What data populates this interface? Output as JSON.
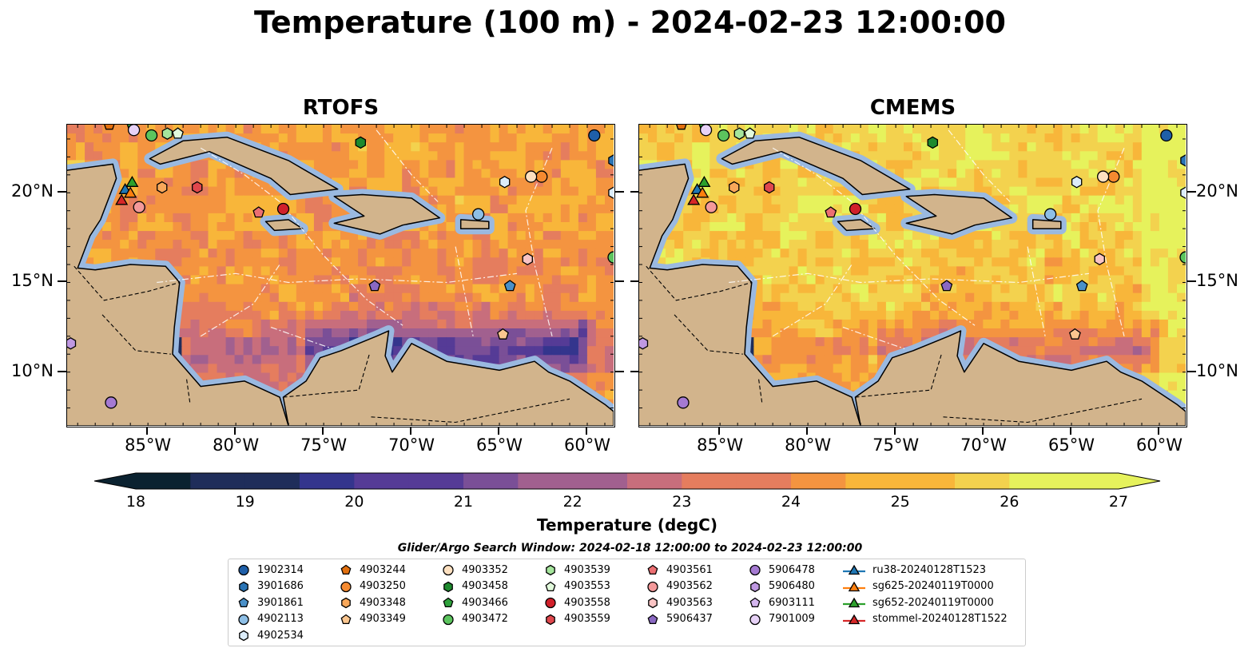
{
  "title": "Temperature (100 m) - 2024-02-23 12:00:00",
  "panels": [
    {
      "title": "RTOFS",
      "variant": "rtofs"
    },
    {
      "title": "CMEMS",
      "variant": "cmems"
    }
  ],
  "axes": {
    "lon_labels": [
      "85°W",
      "80°W",
      "75°W",
      "70°W",
      "65°W",
      "60°W"
    ],
    "lon_values": [
      -85,
      -80,
      -75,
      -70,
      -65,
      -60
    ],
    "lat_labels": [
      "20°N",
      "15°N",
      "10°N"
    ],
    "lat_values": [
      20,
      15,
      10
    ],
    "lon_range": [
      -89.6,
      -58.5
    ],
    "lat_range": [
      7.0,
      23.8
    ]
  },
  "colorbar": {
    "label": "Temperature (degC)",
    "ticks": [
      "18",
      "19",
      "20",
      "21",
      "22",
      "23",
      "24",
      "25",
      "26",
      "27"
    ],
    "vmin": 18,
    "vmax": 27,
    "step": 0.5,
    "extend": "both",
    "colormap": [
      "#0b2230",
      "#1f2d5a",
      "#34358d",
      "#553b96",
      "#7a4f97",
      "#a1608f",
      "#c86e7c",
      "#e57d5e",
      "#f49440",
      "#f8b63a",
      "#f3d24e",
      "#e6f25c"
    ]
  },
  "legend": {
    "title": "Glider/Argo Search Window: 2024-02-18 12:00:00 to 2024-02-23 12:00:00",
    "columns": [
      [
        {
          "label": "1902314",
          "marker": "circle",
          "color": "#1f5fa8"
        },
        {
          "label": "3901686",
          "marker": "hexagon",
          "color": "#2a74b5"
        },
        {
          "label": "3901861",
          "marker": "pentagon",
          "color": "#4a90c8"
        },
        {
          "label": "4902113",
          "marker": "circle",
          "color": "#8ebfe6"
        },
        {
          "label": "4902534",
          "marker": "hexagon",
          "color": "#dcedfa"
        }
      ],
      [
        {
          "label": "4903244",
          "marker": "pentagon",
          "color": "#e2700f"
        },
        {
          "label": "4903250",
          "marker": "circle",
          "color": "#f58a30"
        },
        {
          "label": "4903348",
          "marker": "hexagon",
          "color": "#f9a85a"
        },
        {
          "label": "4903349",
          "marker": "pentagon",
          "color": "#fbc68f"
        }
      ],
      [
        {
          "label": "4903352",
          "marker": "circle",
          "color": "#fde0c0"
        },
        {
          "label": "4903458",
          "marker": "hexagon",
          "color": "#1e8a2e"
        },
        {
          "label": "4903466",
          "marker": "pentagon",
          "color": "#2ea13b"
        },
        {
          "label": "4903472",
          "marker": "circle",
          "color": "#5cc45e"
        }
      ],
      [
        {
          "label": "4903539",
          "marker": "hexagon",
          "color": "#a5e59c"
        },
        {
          "label": "4903553",
          "marker": "pentagon",
          "color": "#e2fadc"
        },
        {
          "label": "4903558",
          "marker": "circle",
          "color": "#d0202a"
        },
        {
          "label": "4903559",
          "marker": "hexagon",
          "color": "#e0474d"
        }
      ],
      [
        {
          "label": "4903561",
          "marker": "pentagon",
          "color": "#ec6f72"
        },
        {
          "label": "4903562",
          "marker": "circle",
          "color": "#f4999a"
        },
        {
          "label": "4903563",
          "marker": "hexagon",
          "color": "#fac4c4"
        },
        {
          "label": "5906437",
          "marker": "pentagon",
          "color": "#8a68c2"
        }
      ],
      [
        {
          "label": "5906478",
          "marker": "circle",
          "color": "#a57ad2"
        },
        {
          "label": "5906480",
          "marker": "hexagon",
          "color": "#bf98e2"
        },
        {
          "label": "6903111",
          "marker": "pentagon",
          "color": "#d4b6ee"
        },
        {
          "label": "7901009",
          "marker": "circle",
          "color": "#e7d2f7"
        }
      ],
      [
        {
          "label": "ru38-20240128T1523",
          "marker": "triangle",
          "color": "#1f77b4"
        },
        {
          "label": "sg625-20240119T0000",
          "marker": "triangle",
          "color": "#ff7f0e"
        },
        {
          "label": "sg652-20240119T0000",
          "marker": "triangle",
          "color": "#2ca02c"
        },
        {
          "label": "stommel-20240128T1522",
          "marker": "triangle",
          "color": "#d62728"
        }
      ]
    ]
  },
  "floats": [
    {
      "id": "1902314",
      "lon": -59.6,
      "lat": 23.2
    },
    {
      "id": "3901686",
      "lon": -58.5,
      "lat": 21.8
    },
    {
      "id": "3901861",
      "lon": -64.4,
      "lat": 14.8
    },
    {
      "id": "4902113",
      "lon": -66.2,
      "lat": 18.8
    },
    {
      "id": "4902534",
      "lon": -64.7,
      "lat": 20.6
    },
    {
      "id": "4902534",
      "lon": -58.5,
      "lat": 20.0
    },
    {
      "id": "4903244",
      "lon": -87.2,
      "lat": 23.8
    },
    {
      "id": "4903250",
      "lon": -62.6,
      "lat": 20.9
    },
    {
      "id": "4903348",
      "lon": -84.2,
      "lat": 20.3
    },
    {
      "id": "4903349",
      "lon": -64.8,
      "lat": 12.1
    },
    {
      "id": "4903352",
      "lon": -63.2,
      "lat": 20.9
    },
    {
      "id": "4903458",
      "lon": -72.9,
      "lat": 22.8
    },
    {
      "id": "4903466",
      "lon": -85.9,
      "lat": 23.8
    },
    {
      "id": "4903472",
      "lon": -84.8,
      "lat": 23.2
    },
    {
      "id": "4903472",
      "lon": -58.5,
      "lat": 16.4
    },
    {
      "id": "4903539",
      "lon": -83.9,
      "lat": 23.3
    },
    {
      "id": "4903553",
      "lon": -83.3,
      "lat": 23.3
    },
    {
      "id": "4903558",
      "lon": -77.3,
      "lat": 19.1
    },
    {
      "id": "4903559",
      "lon": -82.2,
      "lat": 20.3
    },
    {
      "id": "4903561",
      "lon": -78.7,
      "lat": 18.9
    },
    {
      "id": "4903562",
      "lon": -85.5,
      "lat": 19.2
    },
    {
      "id": "4903563",
      "lon": -63.4,
      "lat": 16.3
    },
    {
      "id": "5906437",
      "lon": -72.1,
      "lat": 14.8
    },
    {
      "id": "5906478",
      "lon": -87.1,
      "lat": 8.3
    },
    {
      "id": "5906480",
      "lon": -89.4,
      "lat": 11.6
    },
    {
      "id": "7901009",
      "lon": -85.8,
      "lat": 23.5
    }
  ],
  "gliders": [
    {
      "id": "ru38-20240128T1523",
      "lon": -86.3,
      "lat": 20.2
    },
    {
      "id": "sg625-20240119T0000",
      "lon": -86.0,
      "lat": 20.0
    },
    {
      "id": "sg652-20240119T0000",
      "lon": -85.9,
      "lat": 20.6
    },
    {
      "id": "stommel-20240128T1522",
      "lon": -86.5,
      "lat": 19.6
    }
  ],
  "land": [
    {
      "name": "Cuba",
      "lonlat": [
        [
          -84.9,
          21.9
        ],
        [
          -83.0,
          22.9
        ],
        [
          -80.5,
          23.1
        ],
        [
          -77.0,
          21.8
        ],
        [
          -74.2,
          20.2
        ],
        [
          -76.9,
          19.9
        ],
        [
          -78.0,
          20.8
        ],
        [
          -81.5,
          22.3
        ],
        [
          -84.3,
          21.6
        ]
      ]
    },
    {
      "name": "Hispaniola",
      "lonlat": [
        [
          -74.4,
          19.8
        ],
        [
          -72.8,
          19.9
        ],
        [
          -70.0,
          19.7
        ],
        [
          -68.4,
          18.6
        ],
        [
          -70.5,
          18.2
        ],
        [
          -71.8,
          17.7
        ],
        [
          -74.4,
          18.3
        ],
        [
          -72.7,
          18.7
        ]
      ]
    },
    {
      "name": "Jamaica",
      "lonlat": [
        [
          -78.3,
          18.4
        ],
        [
          -77.0,
          18.5
        ],
        [
          -76.2,
          18.0
        ],
        [
          -77.8,
          17.9
        ]
      ]
    },
    {
      "name": "Puerto Rico",
      "lonlat": [
        [
          -67.2,
          18.5
        ],
        [
          -65.6,
          18.4
        ],
        [
          -65.6,
          18.0
        ],
        [
          -67.2,
          18.0
        ]
      ]
    },
    {
      "name": "Yucatan",
      "lonlat": [
        [
          -90.0,
          21.2
        ],
        [
          -87.0,
          21.6
        ],
        [
          -86.8,
          20.8
        ],
        [
          -87.7,
          18.5
        ],
        [
          -88.3,
          17.6
        ],
        [
          -89.0,
          15.8
        ],
        [
          -88.0,
          15.7
        ],
        [
          -86.0,
          16.0
        ],
        [
          -84.0,
          15.9
        ],
        [
          -83.2,
          15.0
        ],
        [
          -83.5,
          12.5
        ],
        [
          -83.6,
          11.0
        ],
        [
          -82.0,
          9.2
        ],
        [
          -79.5,
          9.5
        ],
        [
          -77.5,
          8.6
        ],
        [
          -77.0,
          7.0
        ],
        [
          -90.0,
          7.0
        ]
      ]
    },
    {
      "name": "South America",
      "lonlat": [
        [
          -77.0,
          7.0
        ],
        [
          -77.3,
          8.6
        ],
        [
          -76.0,
          9.5
        ],
        [
          -75.2,
          10.8
        ],
        [
          -74.0,
          11.2
        ],
        [
          -72.0,
          12.0
        ],
        [
          -71.3,
          12.3
        ],
        [
          -71.5,
          10.9
        ],
        [
          -71.1,
          10.0
        ],
        [
          -70.0,
          11.6
        ],
        [
          -68.0,
          10.6
        ],
        [
          -65.0,
          10.1
        ],
        [
          -63.0,
          10.6
        ],
        [
          -62.2,
          10.0
        ],
        [
          -61.0,
          9.5
        ],
        [
          -59.0,
          8.2
        ],
        [
          -58.5,
          7.8
        ],
        [
          -58.5,
          7.0
        ]
      ]
    }
  ]
}
